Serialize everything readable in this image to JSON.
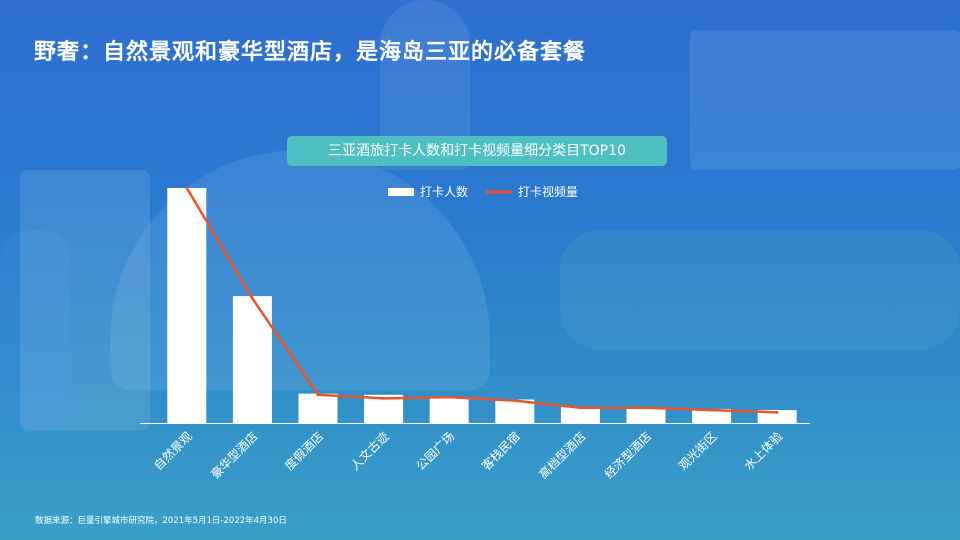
{
  "title": "野奢：自然景观和豪华型酒店，是海岛三亚的必备套餐",
  "source": "数据来源：巨量引擎城市研究院，2021年5月1日-2022年4月30日",
  "colors": {
    "bar": "#ffffff",
    "line": "#e8552c",
    "pill": "#4fc0c2"
  },
  "chart_data": {
    "type": "bar",
    "title": "三亚酒旅打卡人数和打卡视频量细分类目TOP10",
    "categories": [
      "自然景观",
      "豪华型酒店",
      "度假酒店",
      "人文古迹",
      "公园广场",
      "客栈民宿",
      "高档型酒店",
      "经济型酒店",
      "观光街区",
      "水上体验"
    ],
    "series": [
      {
        "name": "打卡人数",
        "type": "bar",
        "values": [
          100,
          54,
          12.5,
          12,
          11,
          10,
          7,
          6.5,
          6,
          5.5
        ]
      },
      {
        "name": "打卡视频量",
        "type": "line",
        "values": [
          100,
          53,
          12,
          10.5,
          11,
          9.5,
          6.5,
          6.5,
          5.5,
          4.5
        ]
      }
    ],
    "ylim": [
      0,
      100
    ],
    "legend_position": "top-center",
    "grid": false
  }
}
